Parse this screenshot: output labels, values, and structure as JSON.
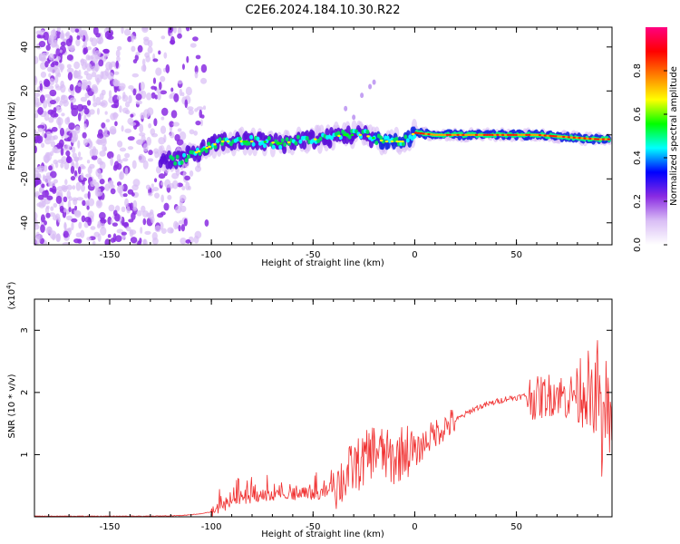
{
  "title": "C2E6.2024.184.10.30.R22",
  "colors": {
    "snr_line": "#f03030",
    "spectrogram_scatter": "#8a2be2"
  },
  "chart_data": [
    {
      "type": "heatmap",
      "name": "spectrogram",
      "xlabel": "Height of straight line (km)",
      "ylabel": "Frequency (Hz)",
      "xlim": [
        -187,
        97
      ],
      "ylim": [
        -50,
        49
      ],
      "xticks": [
        -150,
        -100,
        -50,
        0,
        50
      ],
      "yticks": [
        -40,
        -20,
        0,
        20,
        40
      ],
      "ridge": [
        {
          "x": -125,
          "y": -11
        },
        {
          "x": -115,
          "y": -11
        },
        {
          "x": -105,
          "y": -7
        },
        {
          "x": -95,
          "y": -3
        },
        {
          "x": -85,
          "y": -3
        },
        {
          "x": -75,
          "y": -3
        },
        {
          "x": -65,
          "y": -4
        },
        {
          "x": -55,
          "y": -2
        },
        {
          "x": -45,
          "y": -2
        },
        {
          "x": -35,
          "y": 0
        },
        {
          "x": -25,
          "y": 0
        },
        {
          "x": -15,
          "y": -3
        },
        {
          "x": -5,
          "y": -3
        },
        {
          "x": 0,
          "y": 1
        },
        {
          "x": 10,
          "y": 0
        },
        {
          "x": 30,
          "y": 0
        },
        {
          "x": 60,
          "y": 0
        },
        {
          "x": 90,
          "y": -2
        }
      ],
      "colorbar": {
        "label": "Normalized spectral amplitude",
        "range": [
          0,
          1
        ],
        "ticks": [
          "0.0",
          "0.2",
          "0.4",
          "0.6",
          "0.8"
        ],
        "colormap": [
          "#ffffff",
          "#d9bdf5",
          "#8a2be2",
          "#0000ff",
          "#00ffff",
          "#00ff00",
          "#ffff00",
          "#ff8000",
          "#ff0000",
          "#ff0080"
        ]
      }
    },
    {
      "type": "line",
      "name": "snr",
      "xlabel": "Height of straight line (km)",
      "ylabel": "SNR (10 * v/v)",
      "yscale_label": "(x10",
      "yscale_exp": "4",
      "yscale_close": ")",
      "xlim": [
        -187,
        97
      ],
      "ylim": [
        0,
        3.5
      ],
      "xticks": [
        -150,
        -100,
        -50,
        0,
        50
      ],
      "yticks": [
        1,
        2,
        3
      ],
      "x": [
        -187,
        -170,
        -150,
        -130,
        -115,
        -105,
        -100,
        -95,
        -90,
        -85,
        -80,
        -75,
        -70,
        -65,
        -60,
        -55,
        -50,
        -45,
        -40,
        -35,
        -30,
        -25,
        -20,
        -15,
        -10,
        -5,
        0,
        5,
        10,
        15,
        20,
        25,
        30,
        35,
        40,
        45,
        50,
        55,
        60,
        65,
        70,
        75,
        80,
        85,
        88,
        90,
        92,
        94,
        96
      ],
      "y": [
        0.01,
        0.01,
        0.01,
        0.01,
        0.02,
        0.05,
        0.08,
        0.15,
        0.25,
        0.3,
        0.28,
        0.35,
        0.32,
        0.4,
        0.3,
        0.42,
        0.35,
        0.38,
        0.5,
        0.6,
        0.8,
        0.9,
        1.1,
        1.0,
        0.9,
        1.1,
        1.0,
        1.2,
        1.35,
        1.45,
        1.55,
        1.65,
        1.75,
        1.8,
        1.85,
        1.9,
        1.92,
        1.95,
        1.9,
        1.95,
        2.0,
        1.9,
        2.05,
        2.1,
        1.6,
        2.3,
        1.2,
        2.0,
        1.4
      ]
    }
  ]
}
